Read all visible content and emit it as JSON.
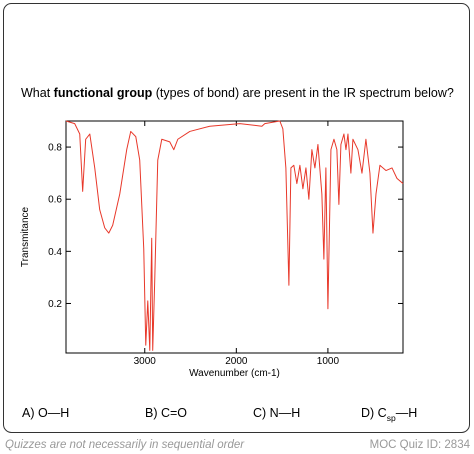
{
  "question": {
    "prefix": "What ",
    "bold": "functional group",
    "suffix": " (types of bond) are present in the IR spectrum below?"
  },
  "chart_data": {
    "type": "line",
    "x_label": "Wavenumber (cm-1)",
    "y_label": "Transmitance",
    "color": "#e8382a",
    "xlim": [
      3860,
      180
    ],
    "ylim": [
      0.01,
      0.9
    ],
    "xticks": [
      3000,
      2000,
      1000
    ],
    "yticks": [
      0.2,
      0.4,
      0.6,
      0.8
    ],
    "x": [
      3860,
      3765,
      3710,
      3678,
      3645,
      3600,
      3546,
      3492,
      3437,
      3393,
      3350,
      3273,
      3197,
      3153,
      3098,
      3055,
      3011,
      2989,
      2967,
      2945,
      2924,
      2913,
      2891,
      2858,
      2814,
      2727,
      2683,
      2639,
      2508,
      2290,
      1962,
      1721,
      1689,
      1525,
      1492,
      1459,
      1426,
      1404,
      1372,
      1339,
      1306,
      1273,
      1240,
      1208,
      1175,
      1142,
      1109,
      1066,
      1044,
      1022,
      1000,
      967,
      934,
      902,
      880,
      858,
      825,
      803,
      781,
      749,
      727,
      672,
      628,
      585,
      541,
      508,
      475,
      432,
      366,
      300,
      246,
      180
    ],
    "values": [
      0.9,
      0.89,
      0.85,
      0.63,
      0.83,
      0.85,
      0.72,
      0.56,
      0.49,
      0.47,
      0.5,
      0.62,
      0.79,
      0.86,
      0.84,
      0.75,
      0.41,
      0.04,
      0.21,
      0.02,
      0.45,
      0.02,
      0.29,
      0.75,
      0.83,
      0.82,
      0.79,
      0.83,
      0.86,
      0.88,
      0.89,
      0.88,
      0.89,
      0.9,
      0.87,
      0.72,
      0.27,
      0.72,
      0.73,
      0.66,
      0.73,
      0.64,
      0.72,
      0.6,
      0.79,
      0.72,
      0.81,
      0.62,
      0.37,
      0.72,
      0.18,
      0.79,
      0.83,
      0.79,
      0.58,
      0.81,
      0.85,
      0.79,
      0.85,
      0.7,
      0.83,
      0.79,
      0.7,
      0.83,
      0.7,
      0.47,
      0.62,
      0.73,
      0.71,
      0.72,
      0.68,
      0.66
    ]
  },
  "choices": {
    "a": "A) O—H",
    "b": "B) C=O",
    "c": "C) N—H",
    "d": {
      "main": "D) C",
      "subscript": "sp",
      "rest": "—H"
    }
  },
  "footer": {
    "note": "Quizzes are not necessarily in sequential order",
    "quiz_id": "MOC Quiz ID: 2834"
  }
}
